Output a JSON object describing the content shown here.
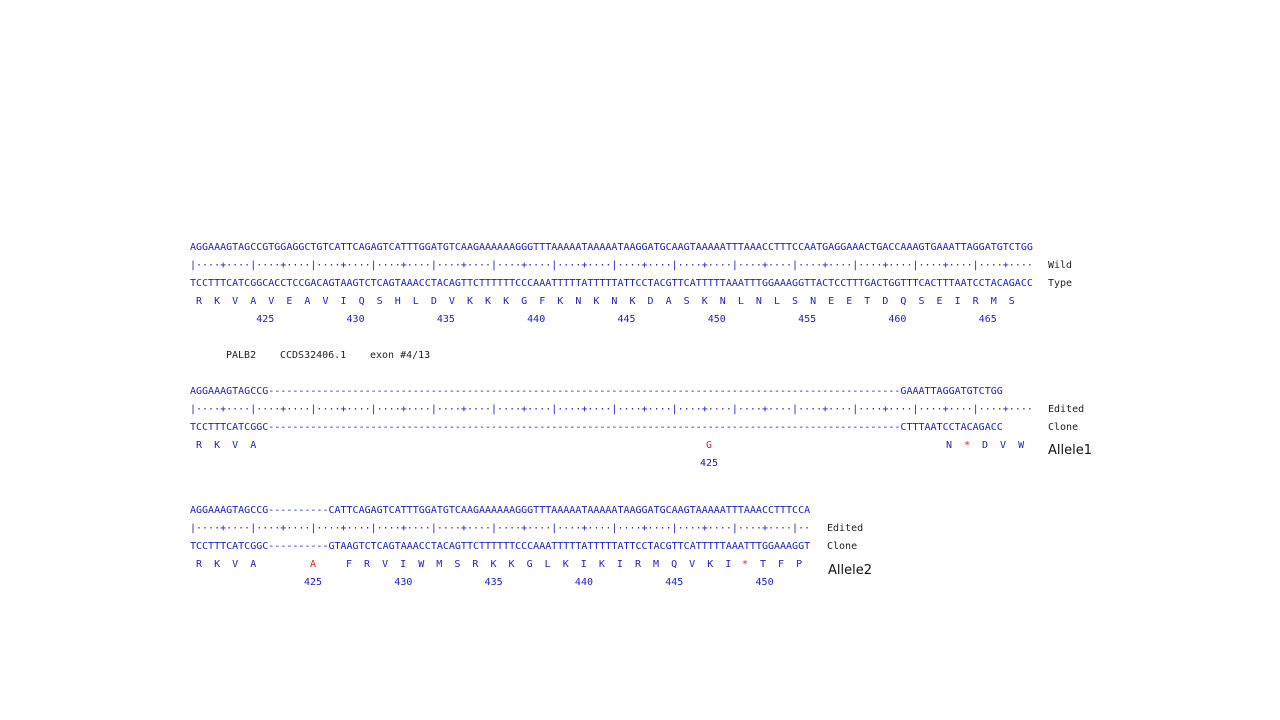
{
  "wild": {
    "seq_top": "AGGAAAGTAGCCGTGGAGGCTGTCATTCAGAGTCATTTGGATGTCAAGAAAAAAGGGTTTAAAAATAAAAATAAGGATGCAAGTAAAAATTTAAACCTTTCCAATGAGGAAACTGACCAAAGTGAAATTAGGATGTCTGG",
    "ruler": "|····+····|····+····|····+····|····+····|····+····|····+····|····+····|····+····|····+····|····+····|····+····|····+····|····+····|····+····",
    "seq_bottom": "TCCTTTCATCGGCACCTCCGACAGTAAGTCTCAGTAAACCTACAGTTCTTTTTTCCCAAATTTTTATTTTTATTCCTACGTTCATTTTTAAATTTGGAAAGGTTACTCCTTTGACTGGTTTCACTTTAATCCTACAGACC",
    "aa": " R  K  V  A  V  E  A  V  I  Q  S  H  L  D  V  K  K  K  G  F  K  N  K  N  K  D  A  S  K  N  L  N  L  S  N  E  E  T  D  Q  S  E  I  R  M  S",
    "numbers": "           425            430            435            440            445            450            455            460            465",
    "label_1": "Wild",
    "label_2": "Type"
  },
  "info": {
    "gene": "PALB2",
    "ccds": "CCDS32406.1",
    "exon": "exon #4/13"
  },
  "allele1": {
    "seq_top": "AGGAAAGTAGCCG---------------------------------------------------------------------------------------------------------GAAATTAGGATGTCTGG",
    "ruler": "|····+····|····+····|····+····|····+····|····+····|····+····|····+····|····+····|····+····|····+····|····+····|····+····|····+····|····+····",
    "seq_bottom": "TCCTTTCATCGGC---------------------------------------------------------------------------------------------------------CTTTAATCCTACAGACC",
    "aa_start": " R  K  V  A",
    "aa_mut": "G",
    "aa_end_1": "N",
    "aa_stop": "*",
    "aa_end_2": "D  V  W",
    "number": "425",
    "label_1": "Edited",
    "label_2": "Clone",
    "name": "Allele1"
  },
  "allele2": {
    "seq_top": "AGGAAAGTAGCCG----------CATTCAGAGTCATTTGGATGTCAAGAAAAAAGGGTTTAAAAATAAAAATAAGGATGCAAGTAAAAATTTAAACCTTTCCA",
    "ruler": "|····+····|····+····|····+····|····+····|····+····|····+····|····+····|····+····|····+····|····+····|··",
    "seq_bottom": "TCCTTTCATCGGC----------GTAAGTCTCAGTAAACCTACAGTTCTTTTTTCCCAAATTTTTATTTTTATTCCTACGTTCATTTTTAAATTTGGAAAGGT",
    "aa_start": " R  K  V  A",
    "aa_mut": "A",
    "aa_mid": "F  R  V  I  W  M  S  R  K  K  G  L  K  I  K  I  R  M  Q  V  K  I",
    "aa_stop": "*",
    "aa_end": "T  F  P",
    "numbers": "425            430            435            440            445            450",
    "label_1": "Edited",
    "label_2": "Clone",
    "name": "Allele2"
  }
}
